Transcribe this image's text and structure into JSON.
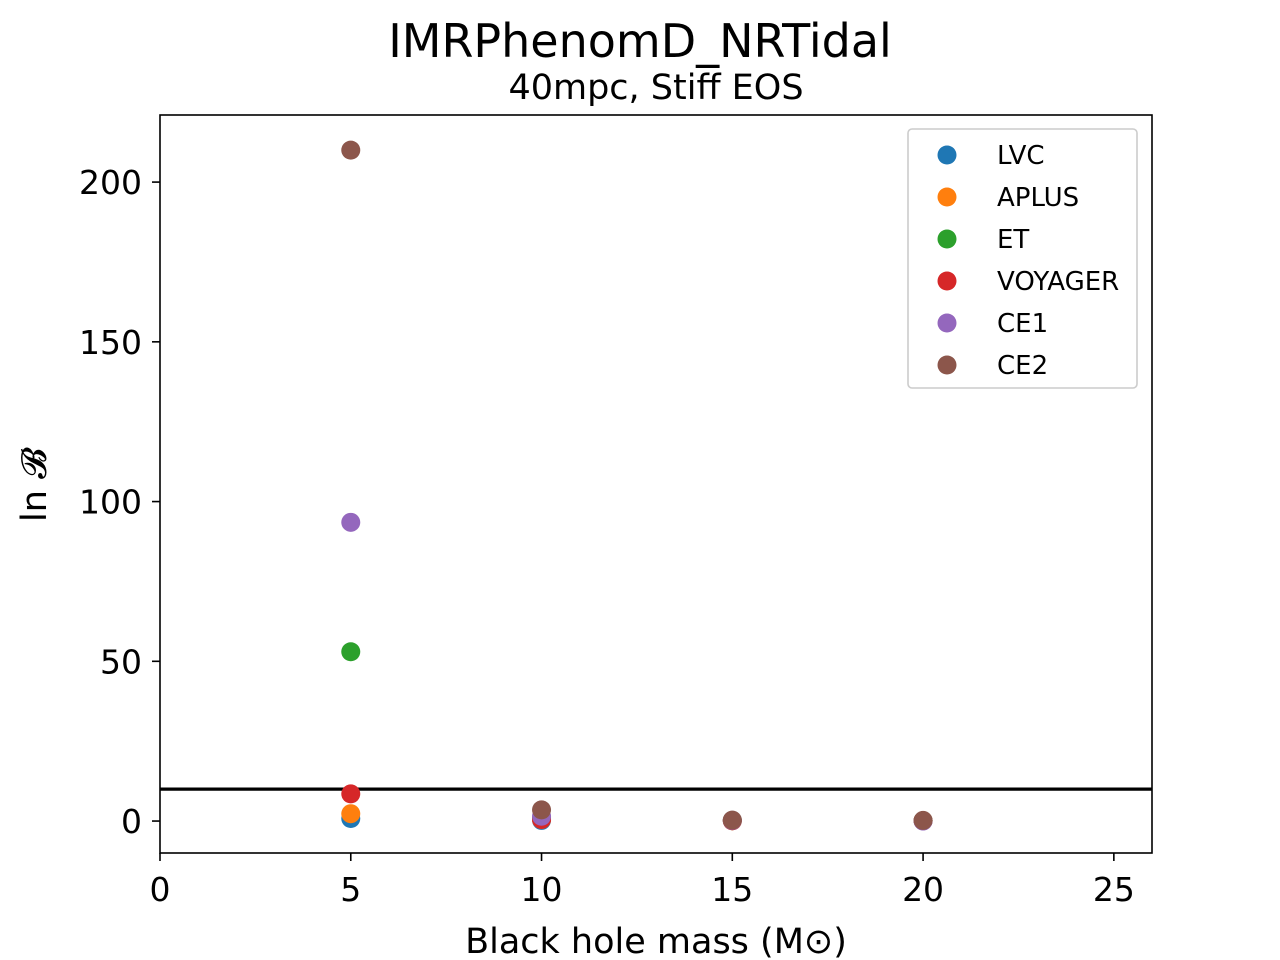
{
  "chart_data": {
    "type": "scatter",
    "title": "IMRPhenomD_NRTidal",
    "subtitle": "40mpc, Stiff EOS",
    "xlabel": "Black hole mass (M⊙)",
    "ylabel": "ln 𝓑",
    "xlim": [
      0,
      26
    ],
    "ylim": [
      -10,
      221
    ],
    "xticks": [
      "0",
      "5",
      "10",
      "15",
      "20",
      "25"
    ],
    "yticks": [
      "0",
      "50",
      "100",
      "150",
      "200"
    ],
    "grid": false,
    "legend_position": "top-right",
    "threshold_line_y": 10,
    "series": [
      {
        "name": "LVC",
        "color": "#1f77b4",
        "points": [
          [
            5,
            0.8
          ],
          [
            10,
            0.2
          ],
          [
            15,
            0.1
          ],
          [
            20,
            0.1
          ]
        ]
      },
      {
        "name": "APLUS",
        "color": "#ff7f0e",
        "points": [
          [
            5,
            2.3
          ],
          [
            10,
            0.5
          ],
          [
            15,
            0.1
          ],
          [
            20,
            0.1
          ]
        ]
      },
      {
        "name": "ET",
        "color": "#2ca02c",
        "points": [
          [
            5,
            53
          ],
          [
            10,
            1.0
          ],
          [
            15,
            0.2
          ],
          [
            20,
            0.1
          ]
        ]
      },
      {
        "name": "VOYAGER",
        "color": "#d62728",
        "points": [
          [
            5,
            8.5
          ],
          [
            10,
            0.5
          ],
          [
            15,
            0.1
          ],
          [
            20,
            0.1
          ]
        ]
      },
      {
        "name": "CE1",
        "color": "#9467bd",
        "points": [
          [
            5,
            93.5
          ],
          [
            10,
            1.5
          ],
          [
            15,
            0.2
          ],
          [
            20,
            0.0
          ]
        ]
      },
      {
        "name": "CE2",
        "color": "#8c564b",
        "points": [
          [
            5,
            210
          ],
          [
            10,
            3.5
          ],
          [
            15,
            0.3
          ],
          [
            20,
            0.2
          ]
        ]
      }
    ]
  }
}
